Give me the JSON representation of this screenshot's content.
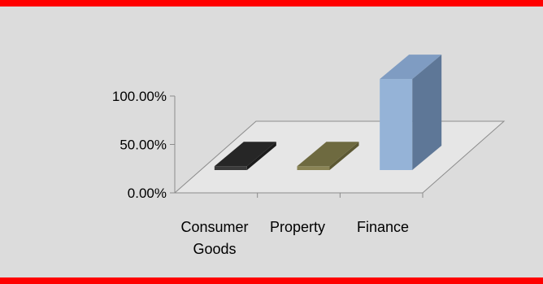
{
  "chart_data": {
    "type": "bar",
    "categories": [
      [
        "Consumer",
        "Goods"
      ],
      [
        "Property"
      ],
      [
        "Finance"
      ]
    ],
    "values": [
      0.04,
      0.04,
      0.94
    ],
    "ylim": [
      0,
      1.0
    ],
    "yticks": [
      "0.00%",
      "50.00%",
      "100.00%"
    ],
    "ytick_values": [
      0,
      0.5,
      1.0
    ],
    "legend": "none",
    "grid": false,
    "style": "3d-column",
    "colors": {
      "bar_front": [
        "#3a3a3a",
        "#8a8455",
        "#95b3d7"
      ],
      "bar_top": [
        "#262626",
        "#6e6a40",
        "#7f9cc2"
      ],
      "bar_side": [
        "#1c1c1c",
        "#5c5833",
        "#5e7797"
      ],
      "accent": "#ff0000",
      "background": "#dcdcdc"
    }
  }
}
